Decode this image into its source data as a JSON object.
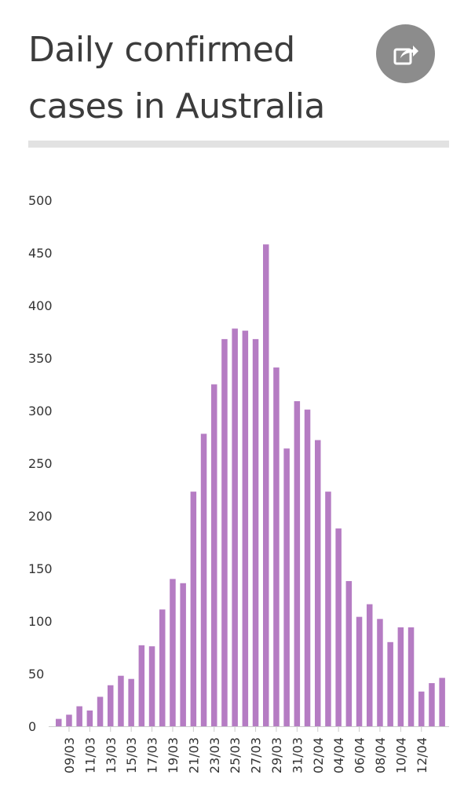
{
  "header": {
    "title": "Daily confirmed cases in Australia"
  },
  "share": {
    "icon": "share-icon"
  },
  "chart_data": {
    "type": "bar",
    "title": "Daily confirmed cases in Australia",
    "xlabel": "",
    "ylabel": "",
    "ylim": [
      0,
      500
    ],
    "y_ticks": [
      0,
      50,
      100,
      150,
      200,
      250,
      300,
      350,
      400,
      450,
      500
    ],
    "grid": false,
    "bar_color": "#b57cc3",
    "categories": [
      "08/03",
      "09/03",
      "10/03",
      "11/03",
      "12/03",
      "13/03",
      "14/03",
      "15/03",
      "16/03",
      "17/03",
      "18/03",
      "19/03",
      "20/03",
      "21/03",
      "22/03",
      "23/03",
      "24/03",
      "25/03",
      "26/03",
      "27/03",
      "28/03",
      "29/03",
      "30/03",
      "31/03",
      "01/04",
      "02/04",
      "03/04",
      "04/04",
      "05/04",
      "06/04",
      "07/04",
      "08/04",
      "09/04",
      "10/04",
      "11/04",
      "12/04",
      "13/04",
      "14/04"
    ],
    "x_tick_labels": [
      "09/03",
      "11/03",
      "13/03",
      "15/03",
      "17/03",
      "19/03",
      "21/03",
      "23/03",
      "25/03",
      "27/03",
      "29/03",
      "31/03",
      "02/04",
      "04/04",
      "06/04",
      "08/04",
      "10/04",
      "12/04"
    ],
    "values": [
      7,
      11,
      19,
      15,
      28,
      39,
      48,
      45,
      77,
      76,
      111,
      140,
      136,
      223,
      278,
      325,
      368,
      378,
      376,
      368,
      458,
      341,
      264,
      309,
      301,
      272,
      223,
      188,
      138,
      104,
      116,
      102,
      80,
      94,
      94,
      33,
      41,
      46
    ]
  }
}
